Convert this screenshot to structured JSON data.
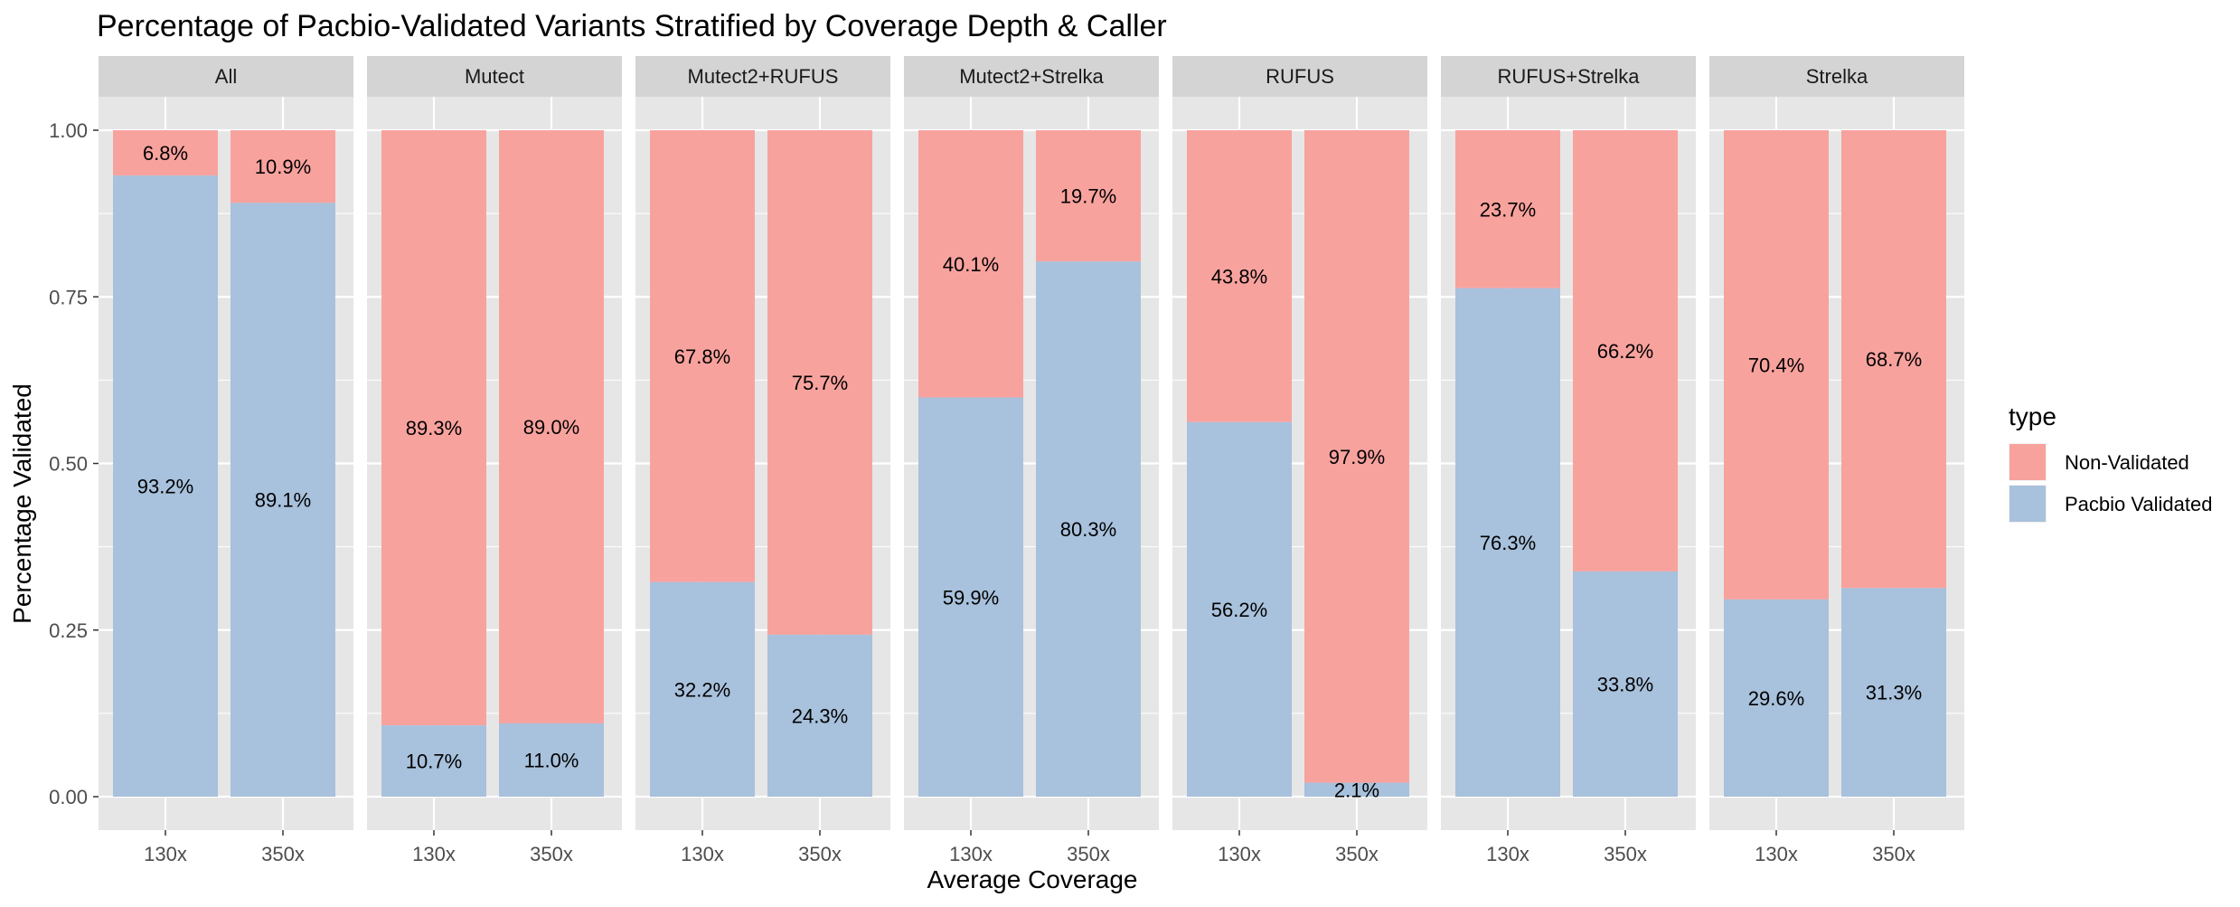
{
  "chart_data": {
    "type": "bar",
    "stacked": true,
    "faceted": true,
    "title": "Percentage of Pacbio-Validated Variants Stratified by Coverage Depth & Caller",
    "xlabel": "Average Coverage",
    "ylabel": "Percentage Validated",
    "ylim": [
      0,
      1
    ],
    "yticks": [
      "0.00",
      "0.25",
      "0.50",
      "0.75",
      "1.00"
    ],
    "categories": [
      "130x",
      "350x"
    ],
    "legend": {
      "title": "type",
      "position": "right",
      "entries": [
        {
          "name": "Non-Validated",
          "color": "#F8A29E"
        },
        {
          "name": "Pacbio Validated",
          "color": "#A8C1DC"
        }
      ]
    },
    "colors": {
      "panel_bg": "#E6E6E6",
      "strip_bg": "#D4D4D4",
      "grid": "#FFFFFF",
      "validated": "#A8C1DC",
      "non_validated": "#F8A29E"
    },
    "facets": [
      {
        "name": "All",
        "validated": [
          0.932,
          0.891
        ],
        "validated_labels": [
          "93.2%",
          "89.1%"
        ],
        "non_validated_labels": [
          "6.8%",
          "10.9%"
        ]
      },
      {
        "name": "Mutect",
        "validated": [
          0.107,
          0.11
        ],
        "validated_labels": [
          "10.7%",
          "11.0%"
        ],
        "non_validated_labels": [
          "89.3%",
          "89.0%"
        ]
      },
      {
        "name": "Mutect2+RUFUS",
        "validated": [
          0.322,
          0.243
        ],
        "validated_labels": [
          "32.2%",
          "24.3%"
        ],
        "non_validated_labels": [
          "67.8%",
          "75.7%"
        ]
      },
      {
        "name": "Mutect2+Strelka",
        "validated": [
          0.599,
          0.803
        ],
        "validated_labels": [
          "59.9%",
          "80.3%"
        ],
        "non_validated_labels": [
          "40.1%",
          "19.7%"
        ]
      },
      {
        "name": "RUFUS",
        "validated": [
          0.562,
          0.021
        ],
        "validated_labels": [
          "56.2%",
          "2.1%"
        ],
        "non_validated_labels": [
          "43.8%",
          "97.9%"
        ]
      },
      {
        "name": "RUFUS+Strelka",
        "validated": [
          0.763,
          0.338
        ],
        "validated_labels": [
          "76.3%",
          "33.8%"
        ],
        "non_validated_labels": [
          "23.7%",
          "66.2%"
        ]
      },
      {
        "name": "Strelka",
        "validated": [
          0.296,
          0.313
        ],
        "validated_labels": [
          "29.6%",
          "31.3%"
        ],
        "non_validated_labels": [
          "70.4%",
          "68.7%"
        ]
      }
    ]
  }
}
